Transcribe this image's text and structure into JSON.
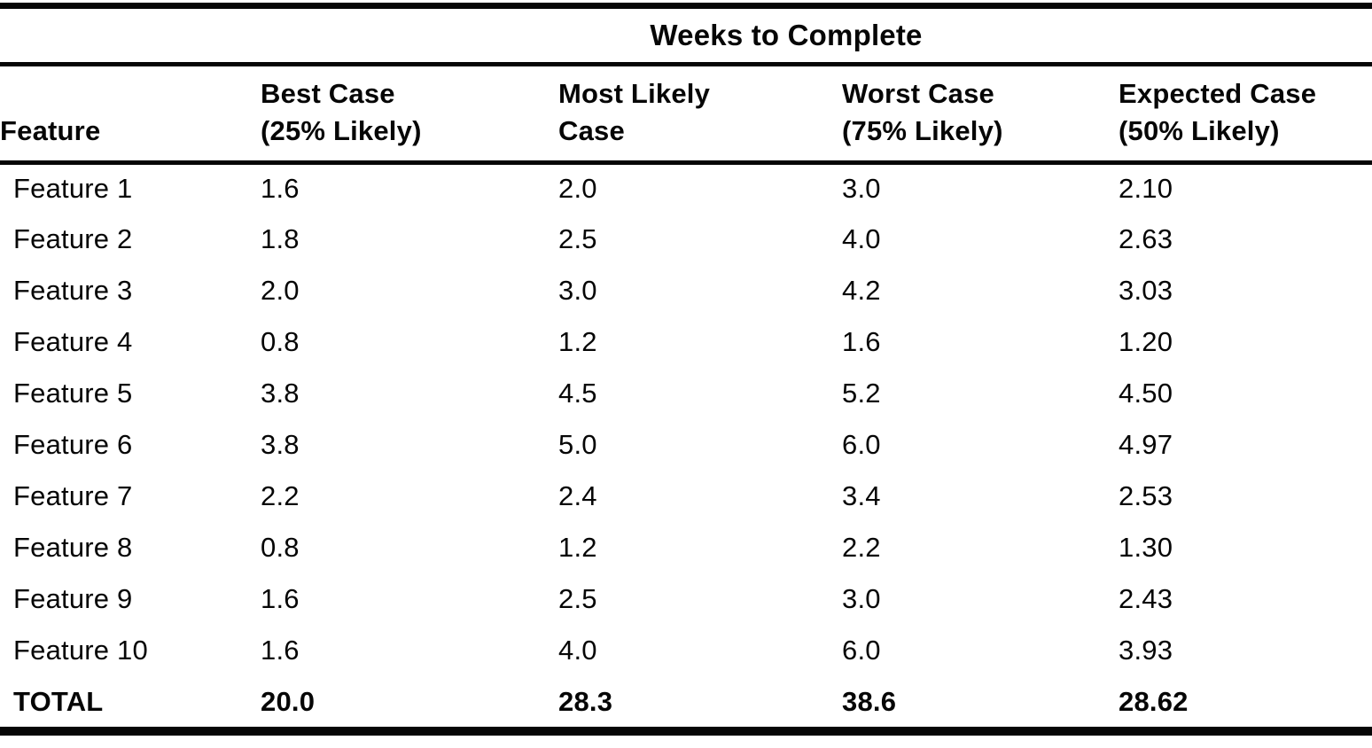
{
  "table": {
    "spanner": "Weeks to Complete",
    "columns": [
      {
        "label": "Feature",
        "sub": ""
      },
      {
        "label": "Best Case",
        "sub": "(25% Likely)"
      },
      {
        "label": "Most Likely",
        "sub": "Case"
      },
      {
        "label": "Worst Case",
        "sub": "(75% Likely)"
      },
      {
        "label": "Expected Case",
        "sub": "(50% Likely)"
      }
    ],
    "rows": [
      {
        "feature": "Feature 1",
        "best": "1.6",
        "most_likely": "2.0",
        "worst": "3.0",
        "expected": "2.10"
      },
      {
        "feature": "Feature 2",
        "best": "1.8",
        "most_likely": "2.5",
        "worst": "4.0",
        "expected": "2.63"
      },
      {
        "feature": "Feature 3",
        "best": "2.0",
        "most_likely": "3.0",
        "worst": "4.2",
        "expected": "3.03"
      },
      {
        "feature": "Feature 4",
        "best": "0.8",
        "most_likely": "1.2",
        "worst": "1.6",
        "expected": "1.20"
      },
      {
        "feature": "Feature 5",
        "best": "3.8",
        "most_likely": "4.5",
        "worst": "5.2",
        "expected": "4.50"
      },
      {
        "feature": "Feature 6",
        "best": "3.8",
        "most_likely": "5.0",
        "worst": "6.0",
        "expected": "4.97"
      },
      {
        "feature": "Feature 7",
        "best": "2.2",
        "most_likely": "2.4",
        "worst": "3.4",
        "expected": "2.53"
      },
      {
        "feature": "Feature 8",
        "best": "0.8",
        "most_likely": "1.2",
        "worst": "2.2",
        "expected": "1.30"
      },
      {
        "feature": "Feature 9",
        "best": "1.6",
        "most_likely": "2.5",
        "worst": "3.0",
        "expected": "2.43"
      },
      {
        "feature": "Feature 10",
        "best": "1.6",
        "most_likely": "4.0",
        "worst": "6.0",
        "expected": "3.93"
      }
    ],
    "total": {
      "feature": "TOTAL",
      "best": "20.0",
      "most_likely": "28.3",
      "worst": "38.6",
      "expected": "28.62"
    }
  },
  "chart_data": {
    "type": "table",
    "title": "Weeks to Complete",
    "columns": [
      "Feature",
      "Best Case (25% Likely)",
      "Most Likely Case",
      "Worst Case (75% Likely)",
      "Expected Case (50% Likely)"
    ],
    "rows": [
      [
        "Feature 1",
        1.6,
        2.0,
        3.0,
        2.1
      ],
      [
        "Feature 2",
        1.8,
        2.5,
        4.0,
        2.63
      ],
      [
        "Feature 3",
        2.0,
        3.0,
        4.2,
        3.03
      ],
      [
        "Feature 4",
        0.8,
        1.2,
        1.6,
        1.2
      ],
      [
        "Feature 5",
        3.8,
        4.5,
        5.2,
        4.5
      ],
      [
        "Feature 6",
        3.8,
        5.0,
        6.0,
        4.97
      ],
      [
        "Feature 7",
        2.2,
        2.4,
        3.4,
        2.53
      ],
      [
        "Feature 8",
        0.8,
        1.2,
        2.2,
        1.3
      ],
      [
        "Feature 9",
        1.6,
        2.5,
        3.0,
        2.43
      ],
      [
        "Feature 10",
        1.6,
        4.0,
        6.0,
        3.93
      ],
      [
        "TOTAL",
        20.0,
        28.3,
        38.6,
        28.62
      ]
    ]
  },
  "colors": {
    "ink": "#060606",
    "paper": "#ffffff"
  }
}
